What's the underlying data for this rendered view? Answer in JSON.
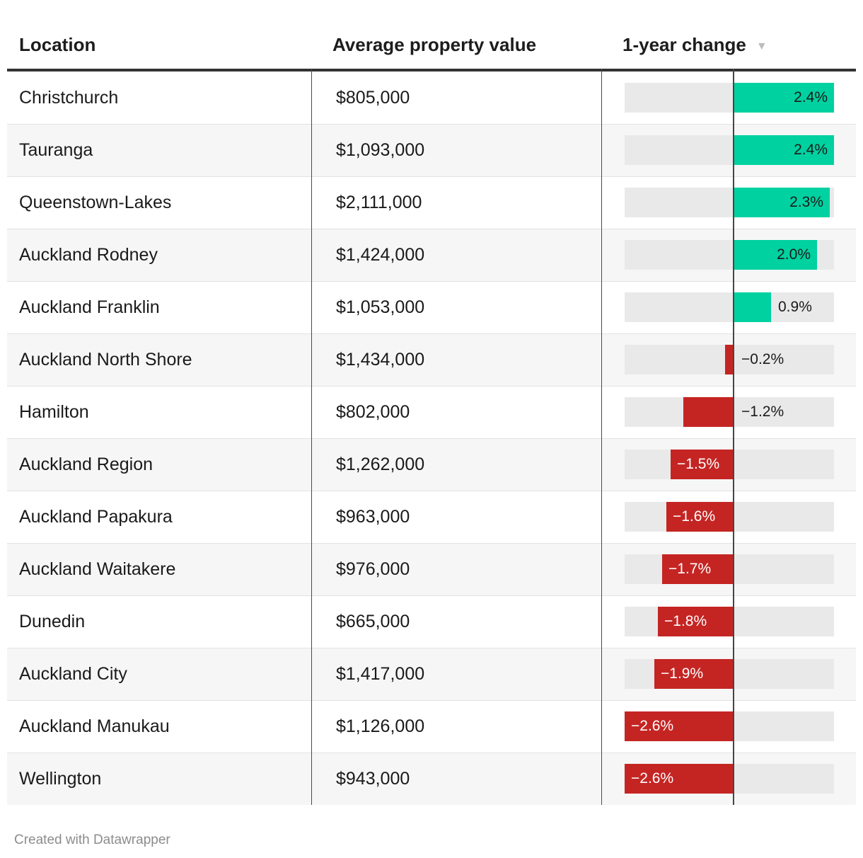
{
  "table": {
    "columns": [
      {
        "label": "Location"
      },
      {
        "label": "Average property value"
      },
      {
        "label": "1-year change"
      }
    ],
    "sort_icon": "▼",
    "sort": {
      "column": "1-year change",
      "direction": "desc"
    }
  },
  "chart_data": {
    "type": "table",
    "title": "",
    "columns": [
      "Location",
      "Average property value",
      "1-year change"
    ],
    "bar_column": "1-year change",
    "bar_axis": {
      "xlim": [
        -2.6,
        2.4
      ],
      "unit": "%",
      "zero_line": true
    },
    "rows": [
      {
        "location": "Christchurch",
        "value": "$805,000",
        "change": 2.4,
        "change_label": "2.4%"
      },
      {
        "location": "Tauranga",
        "value": "$1,093,000",
        "change": 2.4,
        "change_label": "2.4%"
      },
      {
        "location": "Queenstown-Lakes",
        "value": "$2,111,000",
        "change": 2.3,
        "change_label": "2.3%"
      },
      {
        "location": "Auckland Rodney",
        "value": "$1,424,000",
        "change": 2.0,
        "change_label": "2.0%"
      },
      {
        "location": "Auckland Franklin",
        "value": "$1,053,000",
        "change": 0.9,
        "change_label": "0.9%"
      },
      {
        "location": "Auckland North Shore",
        "value": "$1,434,000",
        "change": -0.2,
        "change_label": "−0.2%"
      },
      {
        "location": "Hamilton",
        "value": "$802,000",
        "change": -1.2,
        "change_label": "−1.2%"
      },
      {
        "location": "Auckland Region",
        "value": "$1,262,000",
        "change": -1.5,
        "change_label": "−1.5%"
      },
      {
        "location": "Auckland Papakura",
        "value": "$963,000",
        "change": -1.6,
        "change_label": "−1.6%"
      },
      {
        "location": "Auckland Waitakere",
        "value": "$976,000",
        "change": -1.7,
        "change_label": "−1.7%"
      },
      {
        "location": "Dunedin",
        "value": "$665,000",
        "change": -1.8,
        "change_label": "−1.8%"
      },
      {
        "location": "Auckland City",
        "value": "$1,417,000",
        "change": -1.9,
        "change_label": "−1.9%"
      },
      {
        "location": "Auckland Manukau",
        "value": "$1,126,000",
        "change": -2.6,
        "change_label": "−2.6%"
      },
      {
        "location": "Wellington",
        "value": "$943,000",
        "change": -2.6,
        "change_label": "−2.6%"
      }
    ]
  },
  "colors": {
    "positive_bar": "#00d1a0",
    "negative_bar": "#c42523",
    "bar_track": "#e9e9e9",
    "row_alt": "#f6f6f6",
    "header_rule": "#333333",
    "column_divider": "#4a4a4a",
    "axis_line": "#454545",
    "text_dark": "#1a1a1a",
    "bar_label_light": "#ffffff",
    "sort_icon_gray": "#bdbdbd",
    "footer_gray": "#8c8c8c"
  },
  "footer": {
    "credit": "Created with Datawrapper"
  }
}
